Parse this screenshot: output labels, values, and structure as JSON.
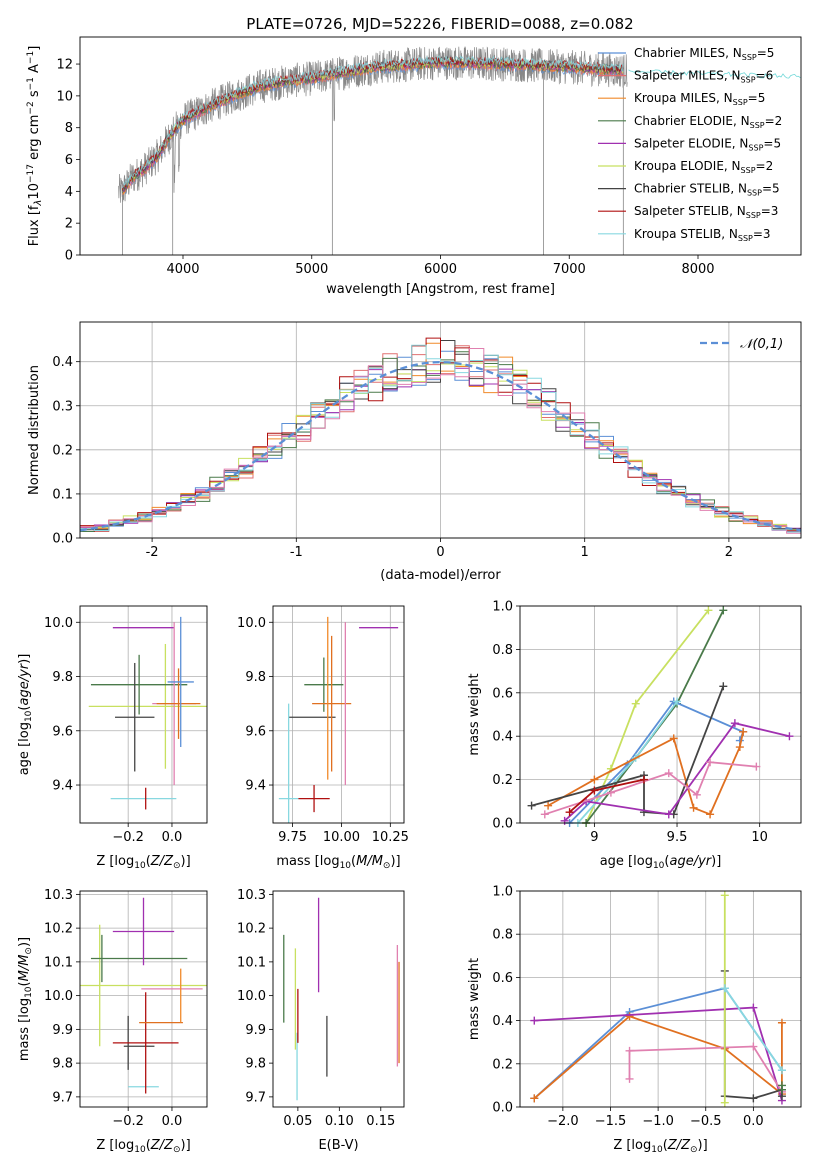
{
  "figure_title": "PLATE=0726, MJD=52226, FIBERID=0088, z=0.082",
  "colors": {
    "Chabrier MILES": "#5b8fd6",
    "Salpeter MILES": "#e07070",
    "Kroupa MILES": "#f08a2a",
    "Chabrier ELODIE": "#4a7a4a",
    "Salpeter ELODIE": "#a030b0",
    "Kroupa ELODIE": "#c8e060",
    "Chabrier STELIB": "#444444",
    "Salpeter STELIB": "#b01010",
    "Kroupa STELIB": "#88d8e0",
    "hot_pink": "#e080b0",
    "teal": "#70d8d8",
    "orange": "#e07020",
    "gray_data": "#888888",
    "grid": "#b0b0b0",
    "gaussian": "#5b8fd6"
  },
  "chart_data": [
    {
      "id": "spectrum",
      "type": "line",
      "title": "PLATE=0726, MJD=52226, FIBERID=0088, z=0.082",
      "xlabel": "wavelength [Angstrom, rest frame]",
      "ylabel": "Flux [f_λ 10^-17 erg cm^-2 s^-1 A^-1]",
      "xlim": [
        3200,
        8800
      ],
      "ylim": [
        0,
        13.7
      ],
      "xticks": [
        4000,
        5000,
        6000,
        7000,
        8000
      ],
      "yticks": [
        0,
        2,
        4,
        6,
        8,
        10,
        12
      ],
      "grid": false,
      "legend": "right",
      "legend_entries": [
        {
          "label": "Chabrier MILES, N_SSP=5",
          "color": "#5b8fd6"
        },
        {
          "label": "Salpeter MILES, N_SSP=6",
          "color": "#e07070"
        },
        {
          "label": "Kroupa MILES, N_SSP=5",
          "color": "#f08a2a"
        },
        {
          "label": "Chabrier ELODIE, N_SSP=2",
          "color": "#4a7a4a"
        },
        {
          "label": "Salpeter ELODIE, N_SSP=5",
          "color": "#a030b0"
        },
        {
          "label": "Kroupa ELODIE, N_SSP=2",
          "color": "#c8e060"
        },
        {
          "label": "Chabrier STELIB, N_SSP=5",
          "color": "#444444"
        },
        {
          "label": "Salpeter STELIB, N_SSP=3",
          "color": "#b01010"
        },
        {
          "label": "Kroupa STELIB, N_SSP=3",
          "color": "#88d8e0"
        }
      ],
      "continuum": {
        "x": [
          3530,
          3600,
          3700,
          3800,
          3900,
          4000,
          4200,
          4400,
          4600,
          4800,
          5000,
          5200,
          5500,
          6000,
          6500,
          7000,
          7400,
          7600,
          8000,
          8400,
          8800
        ],
        "y": [
          4.0,
          4.8,
          5.4,
          6.2,
          7.5,
          8.5,
          9.3,
          10.0,
          10.6,
          10.9,
          11.1,
          11.4,
          11.8,
          12.1,
          12.0,
          11.8,
          11.6,
          11.5,
          11.4,
          11.3,
          11.2
        ]
      },
      "model_x_range": [
        3530,
        7420
      ],
      "data_x_range": [
        3500,
        7450
      ]
    },
    {
      "id": "residuals",
      "type": "histogram",
      "xlabel": "(data-model)/error",
      "ylabel": "Normed distribution",
      "xlim": [
        -2.5,
        2.5
      ],
      "ylim": [
        0,
        0.49
      ],
      "xticks": [
        -2,
        -1,
        0,
        1,
        2
      ],
      "yticks": [
        0.0,
        0.1,
        0.2,
        0.3,
        0.4
      ],
      "grid": true,
      "legend": "top-right",
      "legend_entries": [
        {
          "label": "𝒩(0,1)",
          "color": "#5b8fd6",
          "style": "dashed"
        }
      ],
      "bin_width": 0.1,
      "series_colors": [
        "#5b8fd6",
        "#e07070",
        "#f08a2a",
        "#4a7a4a",
        "#a030b0",
        "#c8e060",
        "#444444",
        "#b01010",
        "#88d8e0",
        "#e080b0"
      ]
    },
    {
      "id": "age_vs_Z",
      "type": "errorbar",
      "xlabel": "Z [log10(Z/Z☉)]",
      "ylabel": "age [log10(age/yr)]",
      "xlim": [
        -0.42,
        0.16
      ],
      "ylim": [
        9.26,
        10.06
      ],
      "xticks": [
        -0.2,
        0.0
      ],
      "xticklabels": [
        "−0.2",
        "0.0"
      ],
      "yticks": [
        9.4,
        9.6,
        9.8,
        10.0
      ],
      "grid": true,
      "points": [
        {
          "x": -0.13,
          "y": 9.35,
          "xerr": 0.15,
          "yerr": 0.0,
          "color": "#88d8e0"
        },
        {
          "x": -0.03,
          "y": 9.69,
          "xerr": 0.35,
          "yerr": 0.23,
          "color": "#c8e060"
        },
        {
          "x": -0.15,
          "y": 9.77,
          "xerr": 0.22,
          "yerr": 0.11,
          "color": "#4a7a4a"
        },
        {
          "x": -0.17,
          "y": 9.65,
          "xerr": 0.09,
          "yerr": 0.2,
          "color": "#444444"
        },
        {
          "x": -0.12,
          "y": 9.35,
          "xerr": 0.0,
          "yerr": 0.04,
          "color": "#b01010"
        },
        {
          "x": -0.13,
          "y": 9.98,
          "xerr": 0.14,
          "yerr": 0.0,
          "color": "#a030b0"
        },
        {
          "x": 0.01,
          "y": 9.7,
          "xerr": 0.1,
          "yerr": 0.3,
          "color": "#e080b0"
        },
        {
          "x": 0.03,
          "y": 9.7,
          "xerr": 0.1,
          "yerr": 0.13,
          "color": "#e07020"
        },
        {
          "x": 0.04,
          "y": 9.78,
          "xerr": 0.06,
          "yerr": 0.24,
          "color": "#5b8fd6"
        }
      ]
    },
    {
      "id": "age_vs_mass",
      "type": "errorbar",
      "xlabel": "mass [log10(M/M☉)]",
      "ylabel": "",
      "xlim": [
        9.65,
        10.32
      ],
      "ylim": [
        9.26,
        10.06
      ],
      "xticks": [
        9.75,
        10.0,
        10.25
      ],
      "xticklabels": [
        "9.75",
        "10.00",
        "10.25"
      ],
      "yticks": [
        9.4,
        9.6,
        9.8,
        10.0
      ],
      "grid": true,
      "points": [
        {
          "x": 9.85,
          "y": 9.65,
          "xerr": 0.12,
          "yerr": 0.0,
          "color": "#444444"
        },
        {
          "x": 9.73,
          "y": 9.35,
          "xerr": 0.05,
          "yerr": 0.35,
          "color": "#88d8e0"
        },
        {
          "x": 9.86,
          "y": 9.35,
          "xerr": 0.08,
          "yerr": 0.05,
          "color": "#b01010"
        },
        {
          "x": 9.91,
          "y": 9.77,
          "xerr": 0.1,
          "yerr": 0.1,
          "color": "#4a7a4a"
        },
        {
          "x": 9.95,
          "y": 9.7,
          "xerr": 0.1,
          "yerr": 0.25,
          "color": "#e07020"
        },
        {
          "x": 10.02,
          "y": 9.7,
          "xerr": 0.0,
          "yerr": 0.3,
          "color": "#e080b0"
        },
        {
          "x": 10.19,
          "y": 9.98,
          "xerr": 0.1,
          "yerr": 0.0,
          "color": "#a030b0"
        },
        {
          "x": 9.93,
          "y": 9.72,
          "xerr": 0.0,
          "yerr": 0.3,
          "color": "#f08a2a"
        }
      ]
    },
    {
      "id": "mass_weight_vs_age",
      "type": "line",
      "xlabel": "age [log10(age/yr)]",
      "ylabel": "mass weight",
      "xlim": [
        8.55,
        10.25
      ],
      "ylim": [
        0.0,
        1.0
      ],
      "xticks": [
        9.0,
        9.5,
        10.0
      ],
      "yticks": [
        0.0,
        0.2,
        0.4,
        0.6,
        0.8,
        1.0
      ],
      "grid": true,
      "series": [
        {
          "color": "#c8e060",
          "x": [
            8.95,
            9.1,
            9.25,
            9.69
          ],
          "y": [
            0.0,
            0.25,
            0.55,
            0.98
          ]
        },
        {
          "color": "#4a7a4a",
          "x": [
            8.95,
            9.5,
            9.78
          ],
          "y": [
            0.0,
            0.55,
            0.98
          ]
        },
        {
          "color": "#5b8fd6",
          "x": [
            8.85,
            9.2,
            9.48,
            9.9,
            9.88
          ],
          "y": [
            0.0,
            0.27,
            0.56,
            0.42,
            0.38
          ]
        },
        {
          "color": "#88d8e0",
          "x": [
            8.9,
            9.25,
            9.5
          ],
          "y": [
            0.0,
            0.3,
            0.56
          ]
        },
        {
          "color": "#e07020",
          "x": [
            8.72,
            9.0,
            9.48,
            9.6,
            9.7,
            9.88,
            9.9
          ],
          "y": [
            0.08,
            0.2,
            0.39,
            0.07,
            0.04,
            0.35,
            0.42
          ]
        },
        {
          "color": "#444444",
          "x": [
            8.62,
            9.3,
            9.3,
            9.48,
            9.78
          ],
          "y": [
            0.08,
            0.22,
            0.05,
            0.04,
            0.63
          ]
        },
        {
          "color": "#a030b0",
          "x": [
            8.82,
            8.95,
            9.45,
            9.85,
            10.18
          ],
          "y": [
            0.01,
            0.1,
            0.04,
            0.46,
            0.4
          ]
        },
        {
          "color": "#e080b0",
          "x": [
            8.7,
            9.1,
            9.45,
            9.62,
            9.7,
            9.98
          ],
          "y": [
            0.04,
            0.14,
            0.23,
            0.13,
            0.28,
            0.26
          ]
        },
        {
          "color": "#b01010",
          "x": [
            8.85,
            9.0,
            9.3
          ],
          "y": [
            0.05,
            0.15,
            0.2
          ]
        }
      ]
    },
    {
      "id": "mass_vs_Z",
      "type": "errorbar",
      "xlabel": "Z [log10(Z/Z☉)]",
      "ylabel": "mass [log10(M/M☉)]",
      "xlim": [
        -0.42,
        0.16
      ],
      "ylim": [
        9.67,
        10.31
      ],
      "xticks": [
        -0.2,
        0.0
      ],
      "xticklabels": [
        "−0.2",
        "0.0"
      ],
      "yticks": [
        9.7,
        9.8,
        9.9,
        10.0,
        10.1,
        10.2,
        10.3
      ],
      "grid": true,
      "points": [
        {
          "x": -0.13,
          "y": 9.73,
          "xerr": 0.07,
          "yerr": 0.0,
          "color": "#88d8e0"
        },
        {
          "x": -0.15,
          "y": 9.85,
          "xerr": 0.07,
          "yerr": 0.0,
          "color": "#444444"
        },
        {
          "x": -0.2,
          "y": 9.86,
          "xerr": 0.0,
          "yerr": 0.08,
          "color": "#444444"
        },
        {
          "x": -0.12,
          "y": 9.86,
          "xerr": 0.15,
          "yerr": 0.15,
          "color": "#b01010"
        },
        {
          "x": -0.05,
          "y": 9.92,
          "xerr": 0.1,
          "yerr": 0.0,
          "color": "#e07020"
        },
        {
          "x": -0.1,
          "y": 10.03,
          "xerr": 0.35,
          "yerr": 0.0,
          "color": "#c8e060"
        },
        {
          "x": -0.33,
          "y": 10.03,
          "xerr": 0.0,
          "yerr": 0.18,
          "color": "#c8e060"
        },
        {
          "x": -0.15,
          "y": 10.11,
          "xerr": 0.22,
          "yerr": 0.0,
          "color": "#4a7a4a"
        },
        {
          "x": -0.32,
          "y": 10.11,
          "xerr": 0.0,
          "yerr": 0.07,
          "color": "#4a7a4a"
        },
        {
          "x": -0.13,
          "y": 10.19,
          "xerr": 0.14,
          "yerr": 0.1,
          "color": "#a030b0"
        },
        {
          "x": 0.0,
          "y": 10.02,
          "xerr": 0.14,
          "yerr": 0.0,
          "color": "#e080b0"
        },
        {
          "x": 0.04,
          "y": 10.0,
          "xerr": 0.0,
          "yerr": 0.08,
          "color": "#f08a2a"
        }
      ]
    },
    {
      "id": "mass_vs_EBV",
      "type": "errorbar",
      "xlabel": "E(B-V)",
      "ylabel": "",
      "xlim": [
        0.02,
        0.178
      ],
      "ylim": [
        9.67,
        10.31
      ],
      "xticks": [
        0.05,
        0.1,
        0.15
      ],
      "xticklabels": [
        "0.05",
        "0.10",
        "0.15"
      ],
      "yticks": [
        9.7,
        9.8,
        9.9,
        10.0,
        10.1,
        10.2,
        10.3
      ],
      "grid": false,
      "points": [
        {
          "x": 0.033,
          "y": 10.05,
          "xerr": 0.0,
          "yerr": 0.13,
          "color": "#4a7a4a"
        },
        {
          "x": 0.047,
          "y": 9.99,
          "xerr": 0.0,
          "yerr": 0.15,
          "color": "#c8e060"
        },
        {
          "x": 0.049,
          "y": 9.79,
          "xerr": 0.0,
          "yerr": 0.1,
          "color": "#88d8e0"
        },
        {
          "x": 0.05,
          "y": 9.94,
          "xerr": 0.0,
          "yerr": 0.08,
          "color": "#b01010"
        },
        {
          "x": 0.075,
          "y": 10.15,
          "xerr": 0.0,
          "yerr": 0.14,
          "color": "#a030b0"
        },
        {
          "x": 0.085,
          "y": 9.85,
          "xerr": 0.0,
          "yerr": 0.09,
          "color": "#444444"
        },
        {
          "x": 0.17,
          "y": 9.97,
          "xerr": 0.0,
          "yerr": 0.18,
          "color": "#e080b0"
        },
        {
          "x": 0.172,
          "y": 9.95,
          "xerr": 0.0,
          "yerr": 0.15,
          "color": "#e07020"
        }
      ]
    },
    {
      "id": "mass_weight_vs_Z",
      "type": "line",
      "xlabel": "Z [log10(Z/Z☉)]",
      "ylabel": "mass weight",
      "xlim": [
        -2.45,
        0.5
      ],
      "ylim": [
        0.0,
        1.0
      ],
      "xticks": [
        -2.0,
        -1.5,
        -1.0,
        -0.5,
        0.0
      ],
      "xticklabels": [
        "−2.0",
        "−1.5",
        "−1.0",
        "−0.5",
        "0.0"
      ],
      "yticks": [
        0.0,
        0.2,
        0.4,
        0.6,
        0.8,
        1.0
      ],
      "grid": true,
      "series": [
        {
          "color": "#5b8fd6",
          "x": [
            -2.3,
            -1.3,
            -0.3,
            0.3
          ],
          "y": [
            0.04,
            0.44,
            0.55,
            0.17
          ]
        },
        {
          "color": "#e07020",
          "x": [
            -2.3,
            -1.3,
            -0.3,
            0.3,
            0.3
          ],
          "y": [
            0.04,
            0.42,
            0.27,
            0.06,
            0.39
          ]
        },
        {
          "color": "#a030b0",
          "x": [
            -2.3,
            0.0,
            0.3
          ],
          "y": [
            0.4,
            0.46,
            0.03
          ]
        },
        {
          "color": "#e080b0",
          "x": [
            -1.3,
            -1.3,
            0.0,
            0.3
          ],
          "y": [
            0.13,
            0.26,
            0.28,
            0.07
          ]
        },
        {
          "color": "#444444",
          "x": [
            -0.3,
            -0.3,
            0.0,
            0.3,
            0.3
          ],
          "y": [
            0.63,
            0.05,
            0.04,
            0.08,
            0.05
          ]
        },
        {
          "color": "#c8e060",
          "x": [
            -0.3,
            -0.3
          ],
          "y": [
            0.98,
            0.02
          ]
        },
        {
          "color": "#88d8e0",
          "x": [
            -0.3,
            0.3
          ],
          "y": [
            0.55,
            0.17
          ]
        },
        {
          "color": "#4a7a4a",
          "x": [
            0.3,
            0.3
          ],
          "y": [
            0.1,
            0.08
          ]
        }
      ]
    }
  ]
}
